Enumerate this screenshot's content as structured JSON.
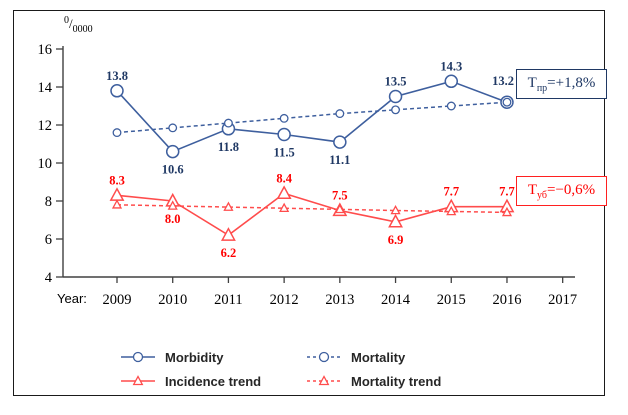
{
  "chart_data": {
    "type": "line",
    "title": "",
    "y_unit": {
      "sup": "0",
      "slash": "/",
      "sub": "0000"
    },
    "x_label": "Year:",
    "categories": [
      "2009",
      "2010",
      "2011",
      "2012",
      "2013",
      "2014",
      "2015",
      "2016"
    ],
    "x_tail_label": "2017",
    "ylim": [
      4,
      16
    ],
    "y_ticks": [
      4,
      6,
      8,
      10,
      12,
      14,
      16
    ],
    "grid": false,
    "legend_position": "bottom",
    "colors": {
      "blue_line": "#3E5F9E",
      "blue_label": "#1F3864",
      "red_line": "#FF4C4C",
      "red_label": "#FF0000",
      "axis": "#404040",
      "legend_text": "#262626"
    },
    "series": [
      {
        "name": "Morbidity",
        "color": "#3E5F9E",
        "label_color": "#1F3864",
        "line": "solid",
        "marker": "circle",
        "marker_size": "large",
        "values": [
          13.8,
          10.6,
          11.8,
          11.5,
          11.1,
          13.5,
          14.3,
          13.2
        ],
        "show_labels": true,
        "label_positions": [
          "above",
          "below",
          "below",
          "below",
          "below",
          "above",
          "above",
          "above-left"
        ]
      },
      {
        "name": "Mortality",
        "color": "#3E5F9E",
        "line": "dashed",
        "marker": "circle",
        "marker_size": "small",
        "values": [
          11.6,
          11.85,
          12.1,
          12.35,
          12.6,
          12.8,
          13.0,
          13.2
        ],
        "show_labels": false
      },
      {
        "name": "Incidence trend",
        "color": "#FF4C4C",
        "label_color": "#FF0000",
        "line": "solid",
        "marker": "triangle",
        "marker_size": "large",
        "values": [
          8.3,
          8.0,
          6.2,
          8.4,
          7.5,
          6.9,
          7.7,
          7.7
        ],
        "show_labels": true,
        "label_positions": [
          "above",
          "below",
          "below",
          "above",
          "above",
          "below",
          "above",
          "above"
        ]
      },
      {
        "name": "Mortality trend",
        "color": "#FF4C4C",
        "line": "dashed",
        "marker": "triangle",
        "marker_size": "small",
        "values": [
          7.8,
          7.74,
          7.68,
          7.62,
          7.56,
          7.5,
          7.45,
          7.4
        ],
        "show_labels": false
      }
    ],
    "annotations": [
      {
        "base": "T",
        "sub": "пр",
        "rest": "=+1,8%",
        "color": "#1F3864"
      },
      {
        "base": "T",
        "sub": "уб",
        "rest": "=−0,6%",
        "color": "#FF0000"
      }
    ]
  }
}
